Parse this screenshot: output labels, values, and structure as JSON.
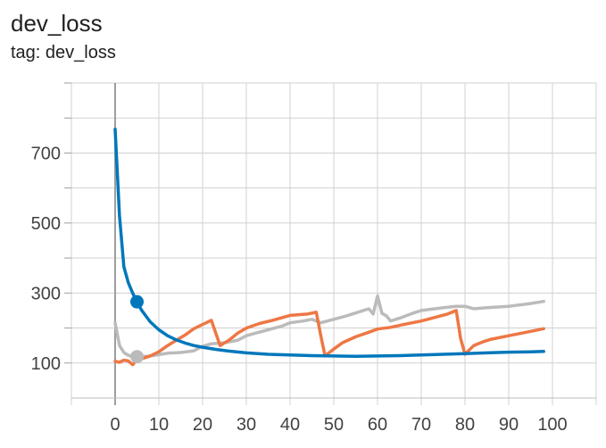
{
  "header": {
    "title": "dev_loss",
    "subtitle": "tag: dev_loss"
  },
  "chart_data": {
    "type": "line",
    "title": "dev_loss",
    "subtitle": "tag: dev_loss",
    "xlim": [
      -10,
      110
    ],
    "ylim": [
      0,
      900
    ],
    "x_ticks": [
      0,
      10,
      20,
      30,
      40,
      50,
      60,
      70,
      80,
      90,
      100
    ],
    "y_ticks": [
      100,
      300,
      500,
      700
    ],
    "grid": true,
    "series": [
      {
        "color": "#0077bb",
        "x": [
          0,
          1,
          2,
          3,
          4,
          5,
          6,
          8,
          10,
          12,
          14,
          16,
          18,
          20,
          23,
          26,
          30,
          35,
          40,
          45,
          50,
          55,
          60,
          65,
          70,
          75,
          80,
          85,
          90,
          95,
          98
        ],
        "y": [
          768,
          520,
          375,
          330,
          300,
          275,
          252,
          218,
          195,
          178,
          166,
          157,
          150,
          145,
          139,
          134,
          129,
          125,
          123,
          121,
          120,
          119,
          120,
          121,
          123,
          125,
          127,
          129,
          131,
          132,
          133
        ],
        "marker": {
          "x": 5,
          "y": 275
        }
      },
      {
        "color": "#ee7744",
        "x": [
          0,
          1,
          2,
          3,
          4,
          5,
          6,
          8,
          10,
          12,
          14,
          16,
          18,
          20,
          22,
          24,
          26,
          28,
          30,
          33,
          36,
          40,
          44,
          46,
          47,
          48,
          50,
          52,
          55,
          58,
          60,
          63,
          66,
          70,
          73,
          76,
          78,
          79,
          80,
          82,
          84,
          86,
          90,
          94,
          98
        ],
        "y": [
          105,
          102,
          108,
          106,
          95,
          110,
          112,
          120,
          132,
          150,
          165,
          180,
          198,
          210,
          222,
          150,
          165,
          185,
          200,
          213,
          222,
          236,
          240,
          245,
          180,
          120,
          140,
          158,
          175,
          188,
          197,
          202,
          210,
          220,
          230,
          240,
          250,
          170,
          125,
          150,
          160,
          168,
          178,
          188,
          198
        ],
        "marker": null
      },
      {
        "color": "#bbbbbb",
        "x": [
          0,
          1,
          2,
          3,
          4,
          5,
          6,
          8,
          10,
          12,
          15,
          18,
          20,
          22,
          25,
          28,
          30,
          32,
          35,
          38,
          40,
          43,
          45,
          47,
          50,
          53,
          55,
          58,
          59,
          60,
          61,
          62,
          63,
          65,
          68,
          70,
          75,
          78,
          80,
          82,
          85,
          90,
          95,
          98
        ],
        "y": [
          215,
          150,
          130,
          122,
          118,
          118,
          118,
          120,
          124,
          128,
          130,
          135,
          148,
          155,
          158,
          165,
          178,
          185,
          195,
          205,
          215,
          220,
          225,
          215,
          225,
          235,
          243,
          255,
          240,
          292,
          242,
          235,
          220,
          228,
          242,
          250,
          258,
          262,
          262,
          255,
          258,
          262,
          270,
          276
        ],
        "marker": {
          "x": 5,
          "y": 118
        }
      }
    ]
  }
}
